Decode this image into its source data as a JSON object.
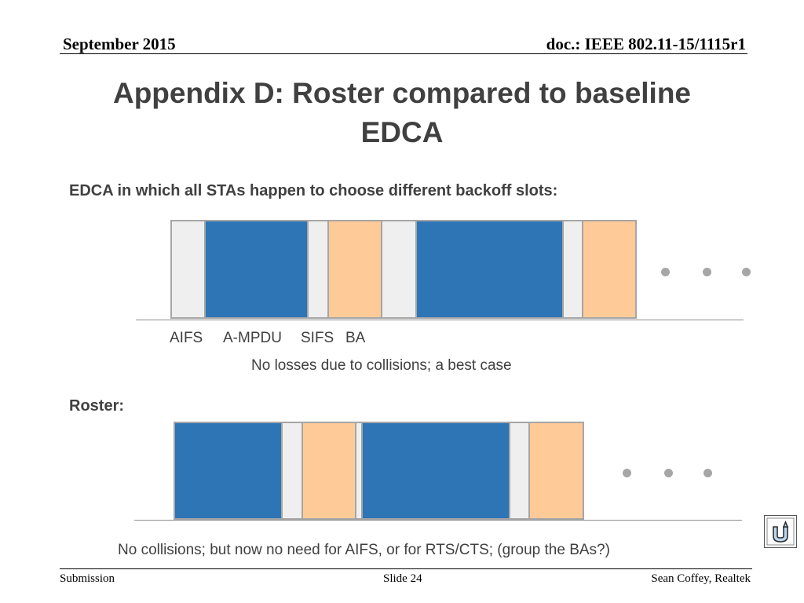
{
  "header": {
    "date": "September 2015",
    "doc": "doc.: IEEE 802.11-15/1115r1"
  },
  "title": {
    "line1": "Appendix D: Roster compared to baseline",
    "line2": "EDCA"
  },
  "edca": {
    "heading": "EDCA in which all STAs happen to choose different backoff slots:",
    "labels": {
      "aifs": "AIFS",
      "ampdu": "A-MPDU",
      "sifs": "SIFS",
      "ba": "BA"
    },
    "caption": "No losses due to collisions; a best case"
  },
  "roster": {
    "heading": "Roster:",
    "caption": "No collisions; but now no need for AIFS, or for RTS/CTS; (group the BAs?)"
  },
  "colors": {
    "ampdu": "#2e75b6",
    "gap": "#efefef",
    "ba": "#fdca98",
    "border": "#a6a6a6"
  },
  "footer": {
    "left": "Submission",
    "center": "Slide 24",
    "right": "Sean Coffey, Realtek"
  },
  "nav_icon": "return-arrow-icon"
}
